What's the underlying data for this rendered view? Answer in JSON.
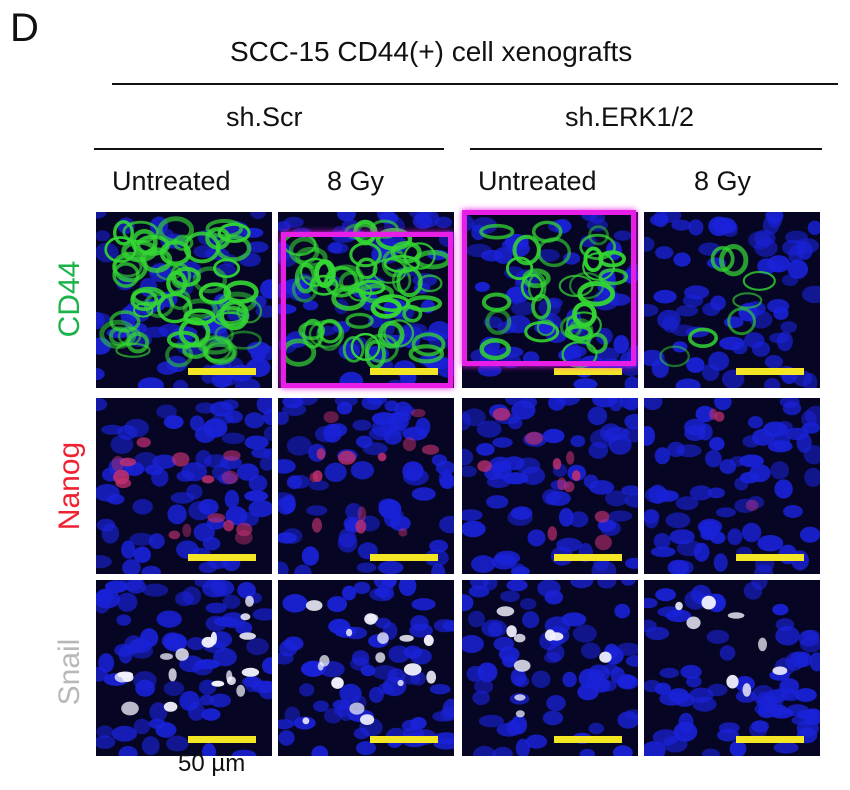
{
  "figure": {
    "panel_letter": "D",
    "title": "SCC-15 CD44(+) cell xenografts",
    "groups": [
      "sh.Scr",
      "sh.ERK1/2"
    ],
    "columns": [
      "Untreated",
      "8 Gy",
      "Untreated",
      "8 Gy"
    ],
    "rows": [
      {
        "label": "CD44",
        "color": "#19b34a"
      },
      {
        "label": "Nanog",
        "color": "#ee2233"
      },
      {
        "label": "Snail",
        "color": "#b8b8b8"
      }
    ],
    "scale_bar_label": "50 µm",
    "colors": {
      "nucleus": "#1a22d8",
      "cd44_stain": "#33d633",
      "nanog_stain": "#c03070",
      "snail_stain": "#f2f2ff",
      "scale_bar": "#f5e625",
      "highlight": "#e61ee6"
    }
  }
}
